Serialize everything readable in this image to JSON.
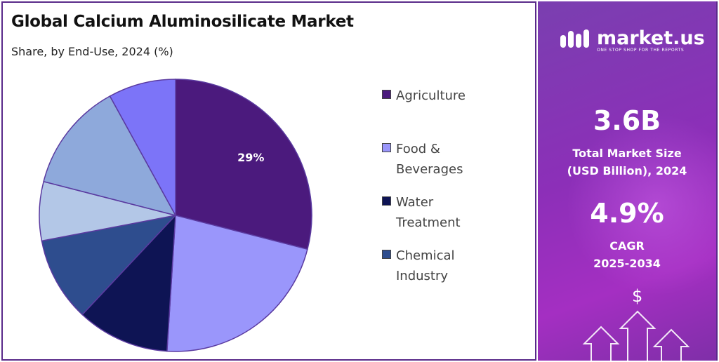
{
  "header": {
    "title": "Global Calcium Aluminosilicate Market",
    "subtitle": "Share, by End-Use, 2024 (%)"
  },
  "chart_data": {
    "type": "pie",
    "title": "Global Calcium Aluminosilicate Market",
    "subtitle": "Share, by End-Use, 2024 (%)",
    "slices": [
      {
        "value": 29,
        "color": "#4b1a7d"
      },
      {
        "value": 22,
        "color": "#9a96fb"
      },
      {
        "value": 11,
        "color": "#0e1454"
      },
      {
        "value": 10,
        "color": "#2e4d8e"
      },
      {
        "value": 7,
        "color": "#b3c7e7"
      },
      {
        "value": 13,
        "color": "#8ea9db"
      },
      {
        "value": 8,
        "color": "#7c74f8"
      }
    ],
    "data_labels": [
      "29%",
      "",
      "",
      "",
      "",
      "",
      ""
    ],
    "legend": [
      {
        "label": "Agriculture",
        "color": "#4b1a7d"
      },
      {
        "label": "Food & Beverages",
        "color": "#9a96fb"
      },
      {
        "label": "Water Treatment",
        "color": "#0e1454"
      },
      {
        "label": "Chemical Industry",
        "color": "#2e4d8e"
      }
    ],
    "legend_position": "right"
  },
  "sidebar": {
    "brand": "market.us",
    "tagline": "ONE STOP SHOP FOR THE REPORTS",
    "market_size_value": "3.6B",
    "market_size_label_1": "Total Market Size",
    "market_size_label_2": "(USD Billion), 2024",
    "cagr_value": "4.9%",
    "cagr_label_1": "CAGR",
    "cagr_label_2": "2025-2034",
    "dollar_symbol": "$"
  },
  "colors": {
    "panel_gradient_start": "#7a3fb0",
    "panel_gradient_end": "#a42fc2",
    "border": "#5a2a8a"
  }
}
